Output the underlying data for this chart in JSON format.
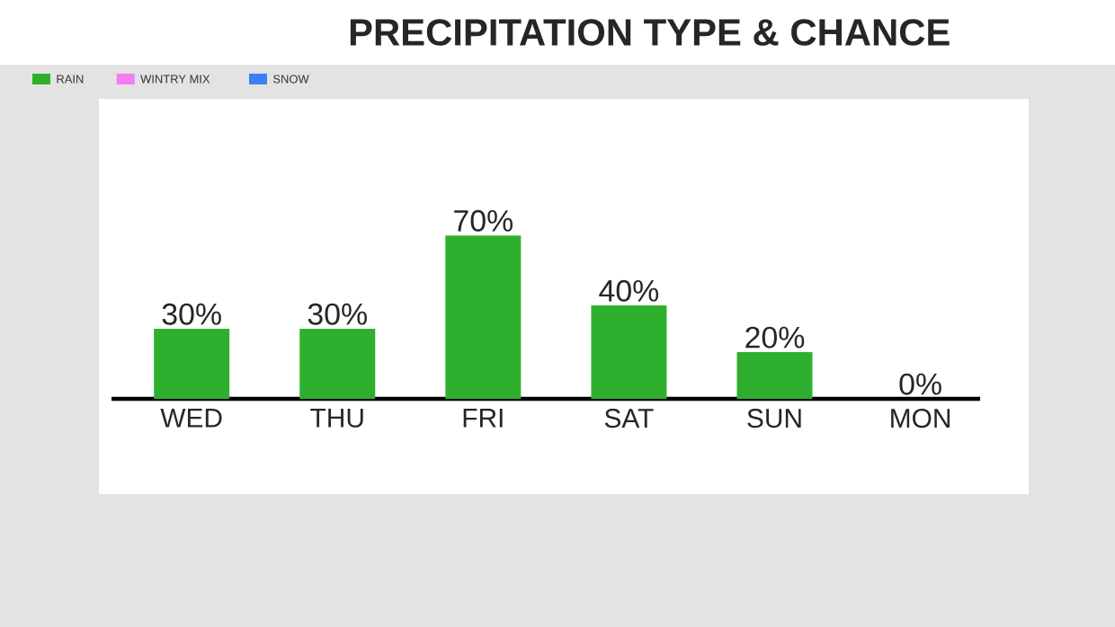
{
  "chart_data": {
    "type": "bar",
    "title": "PRECIPITATION TYPE & CHANCE",
    "categories": [
      "WED",
      "THU",
      "FRI",
      "SAT",
      "SUN",
      "MON"
    ],
    "legend": "top left",
    "series": [
      {
        "name": "RAIN",
        "color": "#2eb02e",
        "values": [
          30,
          30,
          70,
          40,
          20,
          0
        ],
        "value_labels": [
          "30%",
          "30%",
          "70%",
          "40%",
          "20%",
          "0%"
        ]
      },
      {
        "name": "WINTRY MIX",
        "color": "#f27ef2",
        "values": [
          null,
          null,
          null,
          null,
          null,
          null
        ]
      },
      {
        "name": "SNOW",
        "color": "#3d80f5",
        "values": [
          null,
          null,
          null,
          null,
          null,
          null
        ]
      }
    ]
  }
}
